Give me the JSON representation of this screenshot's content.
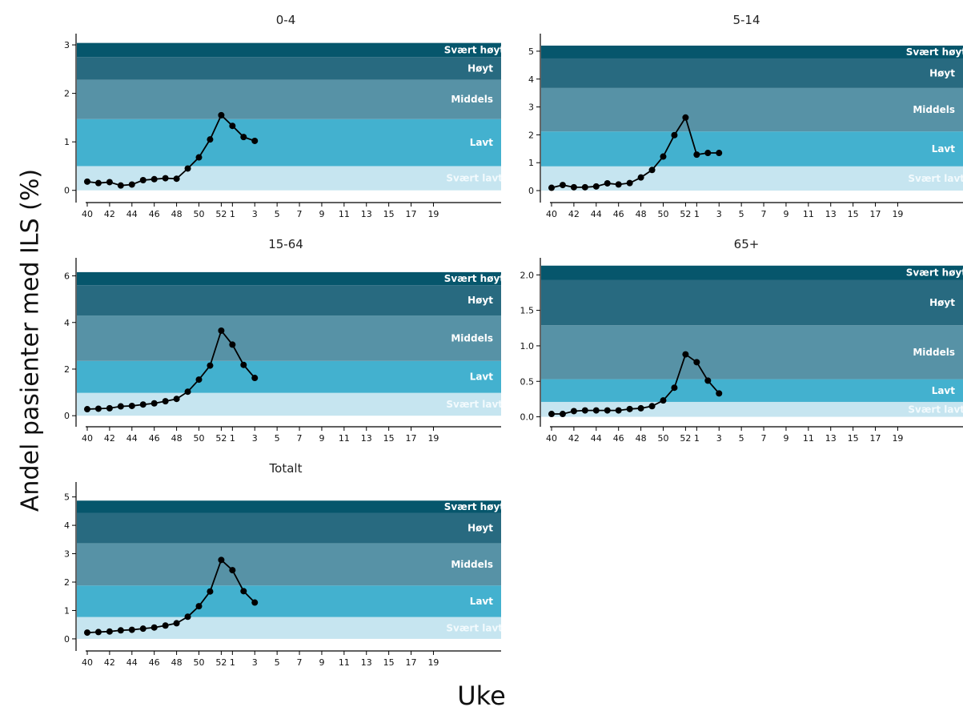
{
  "figure": {
    "ylabel": "Andel pasienter med ILS (%)",
    "xlabel": "Uke"
  },
  "colors": {
    "Svært lavt": "#c6e5f0",
    "Lavt": "#43b1cf",
    "Middels": "#5792a6",
    "Høyt": "#286a80",
    "Svært høyt": "#06566c",
    "line": "#000000"
  },
  "chart_data": [
    {
      "type": "line",
      "title": "0-4",
      "x": [
        "40",
        "41",
        "42",
        "43",
        "44",
        "45",
        "46",
        "47",
        "48",
        "49",
        "50",
        "51",
        "52",
        "1",
        "2",
        "3"
      ],
      "values": [
        0.18,
        0.15,
        0.17,
        0.1,
        0.12,
        0.21,
        0.23,
        0.25,
        0.24,
        0.45,
        0.68,
        1.05,
        1.55,
        1.33,
        1.1,
        1.02
      ],
      "ylim": [
        -0.12,
        3.1
      ],
      "yticks": [
        0,
        1,
        2,
        3
      ],
      "xticks": [
        "40",
        "42",
        "44",
        "46",
        "48",
        "50",
        "52",
        "1",
        "3",
        "5",
        "7",
        "9",
        "11",
        "13",
        "15",
        "17",
        "19"
      ],
      "bands": [
        {
          "label": "Svært lavt",
          "from": 0,
          "to": 0.5
        },
        {
          "label": "Lavt",
          "from": 0.5,
          "to": 1.47
        },
        {
          "label": "Middels",
          "from": 1.47,
          "to": 2.28
        },
        {
          "label": "Høyt",
          "from": 2.28,
          "to": 2.75
        },
        {
          "label": "Svært høyt",
          "from": 2.75,
          "to": 3.04
        }
      ]
    },
    {
      "type": "line",
      "title": "5-14",
      "x": [
        "40",
        "41",
        "42",
        "43",
        "44",
        "45",
        "46",
        "47",
        "48",
        "49",
        "50",
        "51",
        "52",
        "1",
        "2",
        "3"
      ],
      "values": [
        0.1,
        0.2,
        0.12,
        0.12,
        0.15,
        0.26,
        0.22,
        0.27,
        0.47,
        0.74,
        1.22,
        1.99,
        2.62,
        1.29,
        1.35,
        1.35
      ],
      "ylim": [
        -0.2,
        5.4
      ],
      "yticks": [
        0,
        1,
        2,
        3,
        4,
        5
      ],
      "xticks": [
        "40",
        "42",
        "44",
        "46",
        "48",
        "50",
        "52",
        "1",
        "3",
        "5",
        "7",
        "9",
        "11",
        "13",
        "15",
        "17",
        "19"
      ],
      "bands": [
        {
          "label": "Svært lavt",
          "from": 0,
          "to": 0.87
        },
        {
          "label": "Lavt",
          "from": 0.87,
          "to": 2.12
        },
        {
          "label": "Middels",
          "from": 2.12,
          "to": 3.68
        },
        {
          "label": "Høyt",
          "from": 3.68,
          "to": 4.74
        },
        {
          "label": "Svært høyt",
          "from": 4.74,
          "to": 5.2
        }
      ]
    },
    {
      "type": "line",
      "title": "15-64",
      "x": [
        "40",
        "41",
        "42",
        "43",
        "44",
        "45",
        "46",
        "47",
        "48",
        "49",
        "50",
        "51",
        "52",
        "1",
        "2",
        "3"
      ],
      "values": [
        0.28,
        0.3,
        0.32,
        0.4,
        0.42,
        0.48,
        0.53,
        0.62,
        0.72,
        1.03,
        1.55,
        2.15,
        3.65,
        3.05,
        2.18,
        1.62
      ],
      "ylim": [
        -0.2,
        6.5
      ],
      "yticks": [
        0,
        2,
        4,
        6
      ],
      "xticks": [
        "40",
        "42",
        "44",
        "46",
        "48",
        "50",
        "52",
        "1",
        "3",
        "5",
        "7",
        "9",
        "11",
        "13",
        "15",
        "17",
        "19"
      ],
      "bands": [
        {
          "label": "Svært lavt",
          "from": 0,
          "to": 0.98
        },
        {
          "label": "Lavt",
          "from": 0.98,
          "to": 2.35
        },
        {
          "label": "Middels",
          "from": 2.35,
          "to": 4.3
        },
        {
          "label": "Høyt",
          "from": 4.3,
          "to": 5.6
        },
        {
          "label": "Svært høyt",
          "from": 5.6,
          "to": 6.16
        }
      ]
    },
    {
      "type": "line",
      "title": "65+",
      "x": [
        "40",
        "41",
        "42",
        "43",
        "44",
        "45",
        "46",
        "47",
        "48",
        "49",
        "50",
        "51",
        "52",
        "1",
        "2",
        "3"
      ],
      "values": [
        0.04,
        0.04,
        0.08,
        0.09,
        0.09,
        0.09,
        0.09,
        0.11,
        0.12,
        0.15,
        0.23,
        0.41,
        0.88,
        0.77,
        0.51,
        0.33
      ],
      "ylim": [
        -0.05,
        2.15
      ],
      "yticks": [
        0.0,
        0.5,
        1.0,
        1.5,
        2.0
      ],
      "ytick_labels": [
        "0.0",
        "0.5",
        "1.0",
        "1.5",
        "2.0"
      ],
      "xticks": [
        "40",
        "42",
        "44",
        "46",
        "48",
        "50",
        "52",
        "1",
        "3",
        "5",
        "7",
        "9",
        "11",
        "13",
        "15",
        "17",
        "19"
      ],
      "bands": [
        {
          "label": "Svært lavt",
          "from": 0,
          "to": 0.21
        },
        {
          "label": "Lavt",
          "from": 0.21,
          "to": 0.53
        },
        {
          "label": "Middels",
          "from": 0.53,
          "to": 1.29
        },
        {
          "label": "Høyt",
          "from": 1.29,
          "to": 1.93
        },
        {
          "label": "Svært høyt",
          "from": 1.93,
          "to": 2.13
        }
      ]
    },
    {
      "type": "line",
      "title": "Totalt",
      "x": [
        "40",
        "41",
        "42",
        "43",
        "44",
        "45",
        "46",
        "47",
        "48",
        "49",
        "50",
        "51",
        "52",
        "1",
        "2",
        "3"
      ],
      "values": [
        0.22,
        0.24,
        0.26,
        0.3,
        0.32,
        0.36,
        0.4,
        0.47,
        0.55,
        0.78,
        1.15,
        1.67,
        2.78,
        2.42,
        1.68,
        1.28
      ],
      "ylim": [
        -0.2,
        5.3
      ],
      "yticks": [
        0,
        1,
        2,
        3,
        4,
        5
      ],
      "xticks": [
        "40",
        "42",
        "44",
        "46",
        "48",
        "50",
        "52",
        "1",
        "3",
        "5",
        "7",
        "9",
        "11",
        "13",
        "15",
        "17",
        "19"
      ],
      "bands": [
        {
          "label": "Svært lavt",
          "from": 0,
          "to": 0.77
        },
        {
          "label": "Lavt",
          "from": 0.77,
          "to": 1.88
        },
        {
          "label": "Middels",
          "from": 1.88,
          "to": 3.37
        },
        {
          "label": "Høyt",
          "from": 3.37,
          "to": 4.44
        },
        {
          "label": "Svært høyt",
          "from": 4.44,
          "to": 4.87
        }
      ]
    }
  ]
}
